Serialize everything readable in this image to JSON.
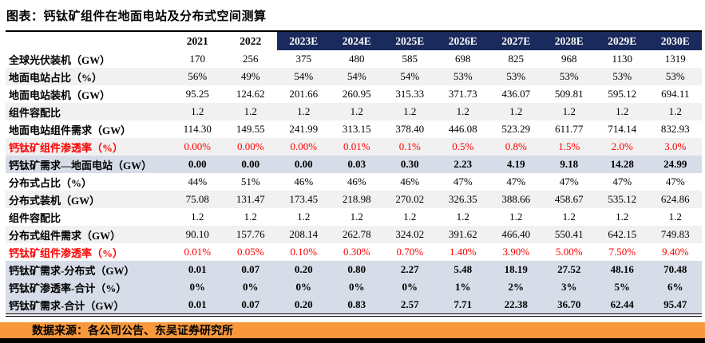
{
  "title": "图表：钙钛矿组件在地面电站及分布式空间测算",
  "source_line": "数据来源：各公司公告、东吴证券研究所",
  "colors": {
    "forecast_header_bg": "#1A2A5C",
    "forecast_header_text": "#FFFFFF",
    "highlight_row_bg": "#D7DDE8",
    "zebra_row_bg": "#F1F1F1",
    "red_text": "#FF0000",
    "source_bar_bg": "#F8983C",
    "bottom_strip": "#000000"
  },
  "chart_data": {
    "type": "table",
    "title": "钙钛矿组件在地面电站及分布式空间测算",
    "columns": [
      "2021",
      "2022",
      "2023E",
      "2024E",
      "2025E",
      "2026E",
      "2027E",
      "2028E",
      "2029E",
      "2030E"
    ],
    "forecast_columns": [
      "2023E",
      "2024E",
      "2025E",
      "2026E",
      "2027E",
      "2028E",
      "2029E",
      "2030E"
    ],
    "rows": [
      {
        "label": "全球光伏装机（GW）",
        "style": "normal",
        "shade": false,
        "values": [
          "170",
          "256",
          "375",
          "480",
          "585",
          "698",
          "825",
          "968",
          "1130",
          "1319"
        ]
      },
      {
        "label": "地面电站占比（%）",
        "style": "normal",
        "shade": true,
        "values": [
          "56%",
          "49%",
          "54%",
          "54%",
          "54%",
          "53%",
          "53%",
          "53%",
          "53%",
          "53%"
        ]
      },
      {
        "label": "地面电站装机（GW）",
        "style": "normal",
        "shade": false,
        "values": [
          "95.25",
          "124.62",
          "201.66",
          "260.95",
          "315.33",
          "371.73",
          "436.07",
          "509.81",
          "595.12",
          "694.11"
        ]
      },
      {
        "label": "组件容配比",
        "style": "normal",
        "shade": true,
        "values": [
          "1.2",
          "1.2",
          "1.2",
          "1.2",
          "1.2",
          "1.2",
          "1.2",
          "1.2",
          "1.2",
          "1.2"
        ]
      },
      {
        "label": "地面电站组件需求（GW）",
        "style": "normal",
        "shade": false,
        "values": [
          "114.30",
          "149.55",
          "241.99",
          "313.15",
          "378.40",
          "446.08",
          "523.29",
          "611.77",
          "714.14",
          "832.93"
        ]
      },
      {
        "label": "钙钛矿组件渗透率（%）",
        "style": "red",
        "shade": true,
        "values": [
          "0.00%",
          "0.00%",
          "0.00%",
          "0.01%",
          "0.1%",
          "0.5%",
          "0.8%",
          "1.5%",
          "2.0%",
          "3.0%"
        ]
      },
      {
        "label": "钙钛矿需求—地面电站（GW）",
        "style": "highlight",
        "shade": false,
        "values": [
          "0.00",
          "0.00",
          "0.00",
          "0.03",
          "0.30",
          "2.23",
          "4.19",
          "9.18",
          "14.28",
          "24.99"
        ]
      },
      {
        "label": "分布式占比（%）",
        "style": "normal",
        "shade": false,
        "values": [
          "44%",
          "51%",
          "46%",
          "46%",
          "46%",
          "47%",
          "47%",
          "47%",
          "47%",
          "47%"
        ]
      },
      {
        "label": "分布式装机（GW）",
        "style": "normal",
        "shade": true,
        "values": [
          "75.08",
          "131.47",
          "173.45",
          "218.98",
          "270.02",
          "326.35",
          "388.66",
          "458.67",
          "535.12",
          "624.86"
        ]
      },
      {
        "label": "组件容配比",
        "style": "normal",
        "shade": false,
        "values": [
          "1.2",
          "1.2",
          "1.2",
          "1.2",
          "1.2",
          "1.2",
          "1.2",
          "1.2",
          "1.2",
          "1.2"
        ]
      },
      {
        "label": "分布式组件需求（GW）",
        "style": "normal",
        "shade": true,
        "values": [
          "90.10",
          "157.76",
          "208.14",
          "262.78",
          "324.02",
          "391.62",
          "466.40",
          "550.41",
          "642.15",
          "749.83"
        ]
      },
      {
        "label": "钙钛矿组件渗透率（%）",
        "style": "red",
        "shade": false,
        "values": [
          "0.01%",
          "0.05%",
          "0.10%",
          "0.30%",
          "0.70%",
          "1.40%",
          "3.90%",
          "5.00%",
          "7.50%",
          "9.40%"
        ]
      },
      {
        "label": "钙钛矿需求-分布式（GW）",
        "style": "highlight",
        "shade": false,
        "values": [
          "0.01",
          "0.07",
          "0.20",
          "0.80",
          "2.27",
          "5.48",
          "18.19",
          "27.52",
          "48.16",
          "70.48"
        ]
      },
      {
        "label": "钙钛矿渗透率-合计（%）",
        "style": "highlight",
        "shade": false,
        "values": [
          "0%",
          "0%",
          "0%",
          "0%",
          "0%",
          "1%",
          "2%",
          "3%",
          "5%",
          "6%"
        ]
      },
      {
        "label": "钙钛矿需求-合计（GW）",
        "style": "highlight",
        "shade": false,
        "values": [
          "0.01",
          "0.07",
          "0.20",
          "0.83",
          "2.57",
          "7.71",
          "22.38",
          "36.70",
          "62.44",
          "95.47"
        ]
      }
    ]
  }
}
